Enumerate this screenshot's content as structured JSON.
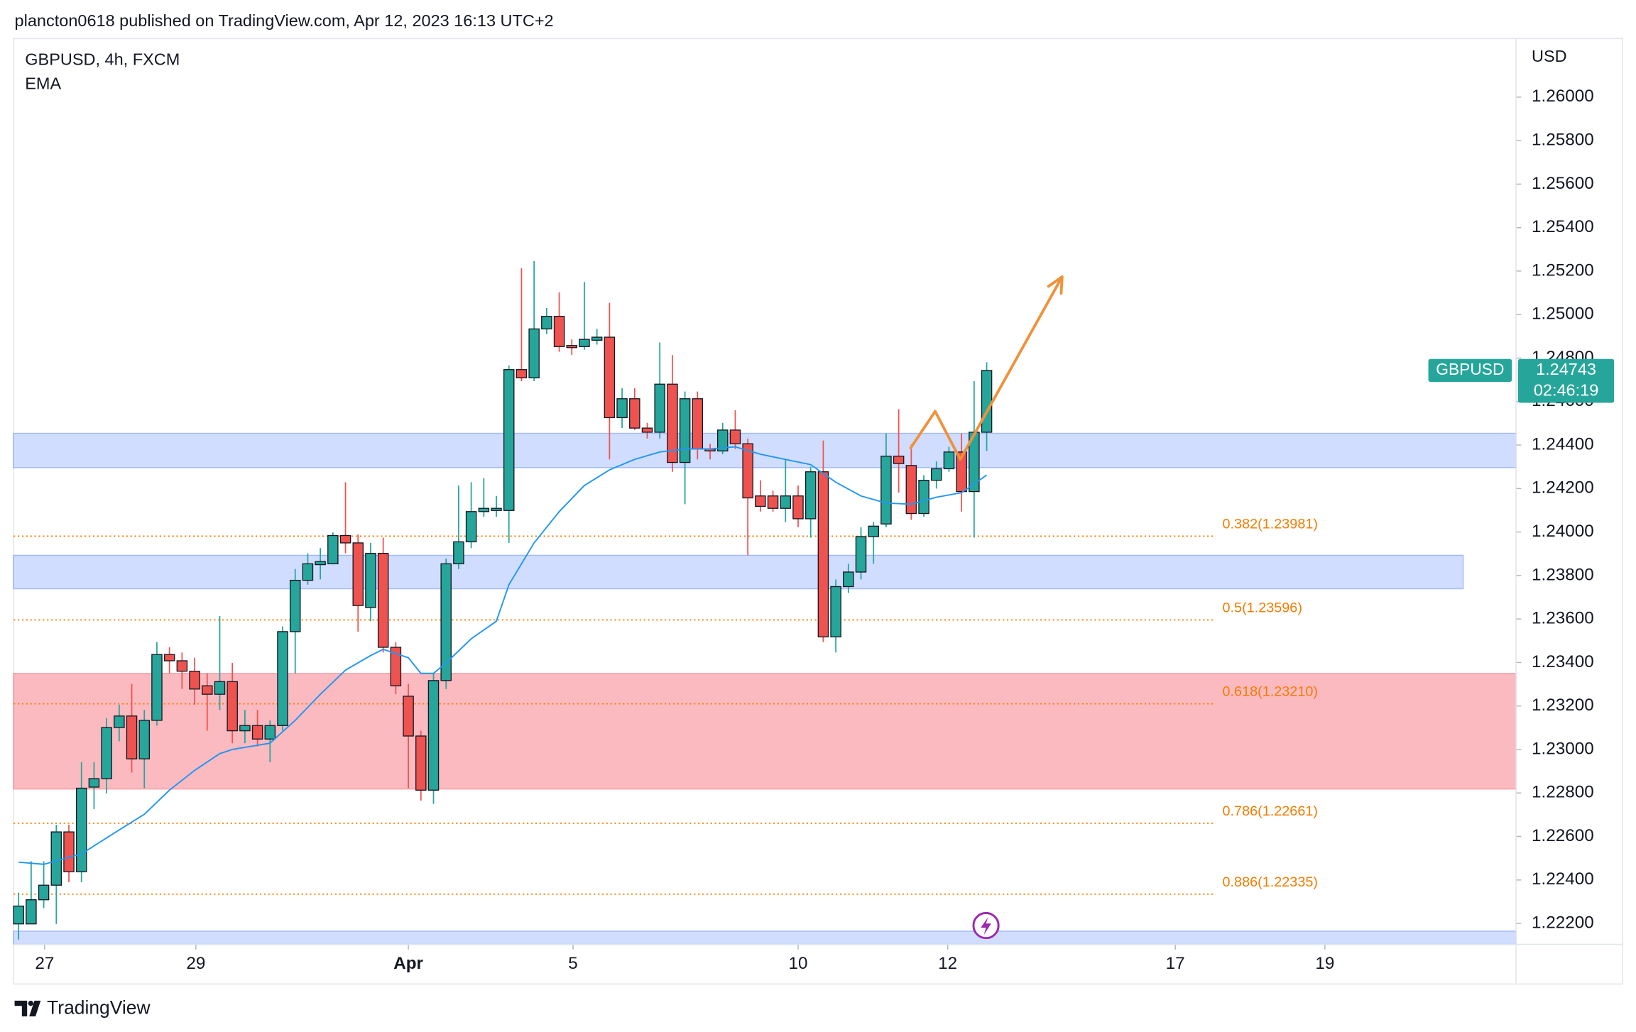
{
  "header": {
    "published": "plancton0618 published on TradingView.com, Apr 12, 2023 16:13 UTC+2"
  },
  "footer": {
    "brand": "TradingView"
  },
  "chart_data": {
    "type": "candlestick",
    "title": "GBPUSD, 4h, FXCM",
    "indicator": "EMA",
    "currency": "USD",
    "up_color": "#26a69a",
    "down_color": "#ef5350",
    "candles": {
      "open": [
        1.22198,
        1.22198,
        1.22309,
        1.22376,
        1.22621,
        1.22438,
        1.22827,
        1.22866,
        1.23101,
        1.23154,
        1.22957,
        1.23134,
        1.23437,
        1.23408,
        1.2336,
        1.23293,
        1.23254,
        1.23312,
        1.23086,
        1.2311,
        1.23048,
        1.2311,
        1.23542,
        1.23778,
        1.2385,
        1.23854,
        1.23984,
        1.2395,
        1.23653,
        1.23902,
        1.2347,
        1.23245,
        1.23062,
        1.22813,
        1.23317,
        1.23854,
        1.23955,
        1.24094,
        1.24099,
        1.24099,
        1.24747,
        1.24709,
        1.24934,
        1.24992,
        1.24858,
        1.24853,
        1.24882,
        1.24896,
        1.24526,
        1.24613,
        1.24478,
        1.24459,
        1.2468,
        1.2432,
        1.24613,
        1.24382,
        1.24373,
        1.24469,
        1.24406,
        1.24166,
        1.24166,
        1.24109,
        1.24166,
        1.24061,
        1.24277,
        1.23518,
        1.23749,
        1.23816,
        1.23979,
        1.24037,
        1.24349,
        1.24306,
        1.24085,
        1.24238,
        1.24291,
        1.24368,
        1.24186,
        1.24459
      ],
      "high": [
        1.22342,
        1.22486,
        1.22486,
        1.22654,
        1.22654,
        1.22942,
        1.22942,
        1.23144,
        1.23206,
        1.23302,
        1.23182,
        1.23494,
        1.2347,
        1.23446,
        1.23422,
        1.2335,
        1.23614,
        1.23398,
        1.23182,
        1.23182,
        1.23134,
        1.23566,
        1.2383,
        1.23902,
        1.23926,
        1.23998,
        1.24229,
        1.23989,
        1.2395,
        1.23974,
        1.23494,
        1.23302,
        1.23086,
        1.2335,
        1.23878,
        1.24214,
        1.24229,
        1.24248,
        1.24166,
        1.24766,
        1.25213,
        1.25246,
        1.2503,
        1.25102,
        1.24886,
        1.2515,
        1.24934,
        1.25054,
        1.24661,
        1.24661,
        1.24502,
        1.24872,
        1.24814,
        1.24646,
        1.24646,
        1.24406,
        1.24502,
        1.2456,
        1.2443,
        1.24238,
        1.2419,
        1.24334,
        1.24214,
        1.243,
        1.24421,
        1.23782,
        1.23854,
        1.24022,
        1.24046,
        1.24454,
        1.24565,
        1.24402,
        1.24262,
        1.24325,
        1.24392,
        1.24454,
        1.24694,
        1.24781
      ],
      "low": [
        1.22126,
        1.22198,
        1.2227,
        1.22198,
        1.2239,
        1.2239,
        1.22726,
        1.22798,
        1.23038,
        1.22894,
        1.22822,
        1.2311,
        1.2335,
        1.23278,
        1.23206,
        1.23086,
        1.23182,
        1.23029,
        1.23029,
        1.23014,
        1.22942,
        1.23086,
        1.2335,
        1.23758,
        1.23782,
        1.23854,
        1.23902,
        1.23542,
        1.2359,
        1.23446,
        1.23254,
        1.22822,
        1.22765,
        1.2275,
        1.23278,
        1.2383,
        1.23926,
        1.2407,
        1.2407,
        1.2395,
        1.24694,
        1.24694,
        1.2491,
        1.24829,
        1.24814,
        1.24838,
        1.24862,
        1.24334,
        1.24478,
        1.24469,
        1.2443,
        1.2443,
        1.24277,
        1.24128,
        1.24334,
        1.24334,
        1.24358,
        1.24382,
        1.23893,
        1.24094,
        1.24094,
        1.24046,
        1.24022,
        1.23974,
        1.23494,
        1.23446,
        1.2372,
        1.23782,
        1.23854,
        1.24022,
        1.24181,
        1.24056,
        1.2407,
        1.242,
        1.24277,
        1.24094,
        1.23974,
        1.24373
      ],
      "close": [
        1.2228,
        1.22309,
        1.22376,
        1.22621,
        1.22438,
        1.22822,
        1.22866,
        1.23101,
        1.23154,
        1.22957,
        1.23134,
        1.23437,
        1.23408,
        1.2336,
        1.23278,
        1.23254,
        1.23312,
        1.23086,
        1.2311,
        1.23048,
        1.2311,
        1.23542,
        1.23778,
        1.23854,
        1.23864,
        1.23984,
        1.2395,
        1.23662,
        1.23902,
        1.2347,
        1.23293,
        1.23062,
        1.22813,
        1.23317,
        1.23854,
        1.23955,
        1.24094,
        1.24109,
        1.24109,
        1.24747,
        1.24709,
        1.24934,
        1.24992,
        1.24853,
        1.24848,
        1.24886,
        1.24896,
        1.24526,
        1.24613,
        1.24478,
        1.24459,
        1.2468,
        1.2432,
        1.24613,
        1.24382,
        1.24373,
        1.24469,
        1.24406,
        1.24157,
        1.24118,
        1.24109,
        1.24166,
        1.24061,
        1.24277,
        1.23518,
        1.23749,
        1.23816,
        1.23979,
        1.24027,
        1.24349,
        1.24315,
        1.24085,
        1.24238,
        1.24291,
        1.24368,
        1.24186,
        1.24459,
        1.24743
      ]
    },
    "ema": {
      "color": "#2196f3",
      "x": [
        0,
        2,
        5,
        8,
        10,
        12,
        14,
        16,
        17,
        20,
        22,
        24,
        26,
        28,
        29,
        31,
        32,
        33,
        34,
        36,
        38,
        39,
        41,
        43,
        45,
        47,
        49,
        51,
        53,
        55,
        57,
        59,
        61,
        63,
        65,
        67,
        69,
        71,
        73,
        75,
        77
      ],
      "values": [
        1.22482,
        1.22472,
        1.2252,
        1.2263,
        1.22702,
        1.22813,
        1.22904,
        1.22981,
        1.23,
        1.23029,
        1.23134,
        1.23254,
        1.23365,
        1.23432,
        1.23461,
        1.23422,
        1.2335,
        1.2335,
        1.23398,
        1.23509,
        1.2359,
        1.23758,
        1.2395,
        1.24094,
        1.24214,
        1.24286,
        1.24334,
        1.24368,
        1.24382,
        1.24382,
        1.24392,
        1.24358,
        1.24334,
        1.2431,
        1.24229,
        1.24166,
        1.24133,
        1.24128,
        1.2416,
        1.24181,
        1.24262
      ]
    },
    "zones": [
      {
        "color": "#2962ff",
        "xlim": [
          -0.4,
          119.1
        ],
        "ylim": [
          1.24296,
          1.24454
        ]
      },
      {
        "color": "#2962ff",
        "xlim": [
          -0.4,
          114.9
        ],
        "ylim": [
          1.23739,
          1.23893
        ]
      },
      {
        "color": "#f23645",
        "xlim": [
          -0.4,
          119.1
        ],
        "ylim": [
          1.22818,
          1.2335
        ]
      },
      {
        "color": "#2962ff",
        "xlim": [
          -0.4,
          119.1
        ],
        "ylim": [
          1.22104,
          1.22165
        ]
      }
    ],
    "fib_color": "#f57c00",
    "fib_xlim": [
      -0.4,
      95.0
    ],
    "fib_levels": [
      {
        "value": 1.23981,
        "label": "0.382(1.23981)"
      },
      {
        "value": 1.23596,
        "label": "0.5(1.23596)"
      },
      {
        "value": 1.2321,
        "label": "0.618(1.23210)"
      },
      {
        "value": 1.22661,
        "label": "0.786(1.22661)"
      },
      {
        "value": 1.22335,
        "label": "0.886(1.22335)"
      }
    ],
    "projection": {
      "color": "#f0913a",
      "x": [
        70.9,
        72.9,
        74.9,
        83.0
      ],
      "values": [
        1.24382,
        1.24555,
        1.24334,
        1.25174
      ]
    },
    "price_tag": {
      "symbol": "GBPUSD",
      "countdown": "02:46:19"
    },
    "xlim": [
      -0.4,
      119.1
    ],
    "ylim": [
      1.22104,
      1.26269
    ],
    "xticks": [
      {
        "value": 2.07,
        "label": "27"
      },
      {
        "value": 14.1,
        "label": "29"
      },
      {
        "value": 31.0,
        "label": "Apr"
      },
      {
        "value": 44.1,
        "label": "5"
      },
      {
        "value": 62.0,
        "label": "10"
      },
      {
        "value": 73.9,
        "label": "12"
      },
      {
        "value": 92.0,
        "label": "17"
      },
      {
        "value": 103.9,
        "label": "19"
      }
    ],
    "yticks": [
      {
        "value": 1.222,
        "label": "1.22200"
      },
      {
        "value": 1.224,
        "label": "1.22400"
      },
      {
        "value": 1.226,
        "label": "1.22600"
      },
      {
        "value": 1.228,
        "label": "1.22800"
      },
      {
        "value": 1.23,
        "label": "1.23000"
      },
      {
        "value": 1.232,
        "label": "1.23200"
      },
      {
        "value": 1.234,
        "label": "1.23400"
      },
      {
        "value": 1.236,
        "label": "1.23600"
      },
      {
        "value": 1.238,
        "label": "1.23800"
      },
      {
        "value": 1.24,
        "label": "1.24000"
      },
      {
        "value": 1.242,
        "label": "1.24200"
      },
      {
        "value": 1.244,
        "label": "1.24400"
      },
      {
        "value": 1.246,
        "label": "1.24600"
      },
      {
        "value": 1.248,
        "label": "1.24800"
      },
      {
        "value": 1.25,
        "label": "1.25000"
      },
      {
        "value": 1.252,
        "label": "1.25200"
      },
      {
        "value": 1.254,
        "label": "1.25400"
      },
      {
        "value": 1.256,
        "label": "1.25600"
      },
      {
        "value": 1.258,
        "label": "1.25800"
      },
      {
        "value": 1.26,
        "label": "1.26000"
      }
    ]
  }
}
